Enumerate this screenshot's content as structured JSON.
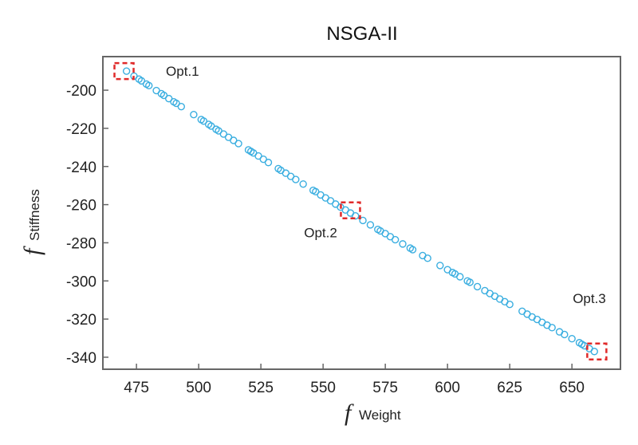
{
  "chart_data": {
    "type": "scatter",
    "title": "NSGA-II",
    "xlabel": {
      "symbol": "f",
      "subscript": "Weight"
    },
    "ylabel": {
      "symbol": "f",
      "subscript": "Stiffness"
    },
    "xlim": [
      461.5,
      669.5
    ],
    "ylim": [
      -346.3,
      -182.4
    ],
    "xticks": [
      475,
      500,
      525,
      550,
      575,
      600,
      625,
      650
    ],
    "yticks": [
      -200,
      -220,
      -240,
      -260,
      -280,
      -300,
      -320,
      -340
    ],
    "grid": false,
    "marker": "open-circle",
    "colors": {
      "points": "#3aaee0",
      "highlight": "#e02a2a",
      "axis": "#666666"
    },
    "points": [
      [
        471,
        -190
      ],
      [
        474,
        -192.6
      ],
      [
        476,
        -194.2
      ],
      [
        477,
        -195.1
      ],
      [
        479,
        -196.8
      ],
      [
        480,
        -197.6
      ],
      [
        483,
        -200.2
      ],
      [
        485,
        -201.8
      ],
      [
        486,
        -202.7
      ],
      [
        488,
        -204.4
      ],
      [
        490,
        -206.1
      ],
      [
        491,
        -206.9
      ],
      [
        493,
        -208.6
      ],
      [
        498,
        -212.8
      ],
      [
        501,
        -215.4
      ],
      [
        502,
        -216.2
      ],
      [
        504,
        -217.9
      ],
      [
        505,
        -218.8
      ],
      [
        507,
        -220.5
      ],
      [
        508,
        -221.3
      ],
      [
        510,
        -223.0
      ],
      [
        512,
        -224.7
      ],
      [
        514,
        -226.3
      ],
      [
        516,
        -228.0
      ],
      [
        520,
        -231.3
      ],
      [
        521,
        -232.1
      ],
      [
        522,
        -232.9
      ],
      [
        524,
        -234.5
      ],
      [
        526,
        -236.2
      ],
      [
        528,
        -237.9
      ],
      [
        532,
        -241.1
      ],
      [
        533,
        -242.0
      ],
      [
        535,
        -243.5
      ],
      [
        537,
        -245.2
      ],
      [
        539,
        -246.8
      ],
      [
        542,
        -249.2
      ],
      [
        546,
        -252.5
      ],
      [
        547,
        -253.2
      ],
      [
        549,
        -254.9
      ],
      [
        551,
        -256.5
      ],
      [
        553,
        -258.0
      ],
      [
        555,
        -259.7
      ],
      [
        557,
        -261.3
      ],
      [
        559,
        -262.8
      ],
      [
        561,
        -264.4
      ],
      [
        563,
        -265.9
      ],
      [
        566,
        -268.3
      ],
      [
        569,
        -270.6
      ],
      [
        572,
        -273.0
      ],
      [
        573,
        -273.8
      ],
      [
        575,
        -275.2
      ],
      [
        577,
        -276.8
      ],
      [
        579,
        -278.4
      ],
      [
        582,
        -280.6
      ],
      [
        585,
        -282.8
      ],
      [
        586,
        -283.6
      ],
      [
        590,
        -286.7
      ],
      [
        592,
        -288.1
      ],
      [
        597,
        -291.9
      ],
      [
        600,
        -294.1
      ],
      [
        602,
        -295.6
      ],
      [
        603,
        -296.3
      ],
      [
        605,
        -297.8
      ],
      [
        608,
        -300.0
      ],
      [
        609,
        -300.7
      ],
      [
        612,
        -303.0
      ],
      [
        615,
        -305.1
      ],
      [
        617,
        -306.6
      ],
      [
        619,
        -308.0
      ],
      [
        621,
        -309.5
      ],
      [
        623,
        -310.9
      ],
      [
        625,
        -312.3
      ],
      [
        630,
        -315.9
      ],
      [
        632,
        -317.4
      ],
      [
        634,
        -318.9
      ],
      [
        636,
        -320.2
      ],
      [
        638,
        -321.7
      ],
      [
        640,
        -323.2
      ],
      [
        642,
        -324.5
      ],
      [
        645,
        -326.7
      ],
      [
        647,
        -328.1
      ],
      [
        650,
        -330.3
      ],
      [
        653,
        -332.4
      ],
      [
        654,
        -333.2
      ],
      [
        655,
        -334.0
      ],
      [
        657,
        -335.5
      ],
      [
        659,
        -337.0
      ]
    ],
    "annotations": [
      {
        "label": "Opt.1",
        "point": [
          470,
          -190
        ],
        "label_at": [
          493.5,
          -192.5
        ]
      },
      {
        "label": "Opt.2",
        "point": [
          561,
          -263
        ],
        "label_at": [
          549,
          -277
        ]
      },
      {
        "label": "Opt.3",
        "point": [
          660,
          -337
        ],
        "label_at": [
          657,
          -311.5
        ]
      }
    ]
  }
}
